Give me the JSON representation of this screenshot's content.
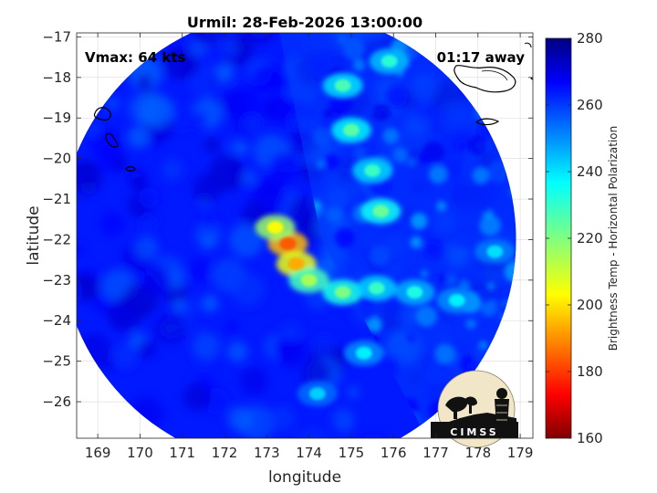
{
  "chart_data": {
    "type": "heatmap",
    "title": "Urmil: 28-Feb-2026 13:00:00",
    "xlabel": "longitude",
    "ylabel": "latitude",
    "xlim": [
      168.5,
      179.3
    ],
    "ylim": [
      -26.9,
      -16.9
    ],
    "x_ticks": [
      169,
      170,
      171,
      172,
      173,
      174,
      175,
      176,
      177,
      178,
      179
    ],
    "y_ticks": [
      -17,
      -18,
      -19,
      -20,
      -21,
      -22,
      -23,
      -24,
      -25,
      -26
    ],
    "grid": true,
    "annotations": {
      "left": "Vmax: 64 kts",
      "right": "01:17 away"
    },
    "swath": {
      "center_lon": 173.5,
      "center_lat": -22.0,
      "radius_deg_lon": 5.4
    },
    "storm_center": {
      "lon": 173.5,
      "lat": -22.1
    },
    "colorbar": {
      "label": "Brightness Temp - Horizontal Polarization",
      "min": 160,
      "max": 280,
      "ticks": [
        160,
        180,
        200,
        220,
        240,
        260,
        280
      ],
      "colormap": "jet"
    },
    "features": [
      {
        "name": "eyewall",
        "lon": 173.5,
        "lat": -22.1,
        "tb": 185
      },
      {
        "name": "eyewall",
        "lon": 173.7,
        "lat": -22.6,
        "tb": 195
      },
      {
        "name": "eyewall",
        "lon": 173.2,
        "lat": -21.7,
        "tb": 205
      },
      {
        "name": "inner-band",
        "lon": 174.0,
        "lat": -23.0,
        "tb": 215
      },
      {
        "name": "inner-band",
        "lon": 174.8,
        "lat": -23.3,
        "tb": 220
      },
      {
        "name": "outer-band",
        "lon": 175.6,
        "lat": -23.2,
        "tb": 228
      },
      {
        "name": "outer-band",
        "lon": 176.5,
        "lat": -23.3,
        "tb": 232
      },
      {
        "name": "outer-band",
        "lon": 177.5,
        "lat": -23.5,
        "tb": 236
      },
      {
        "name": "outer-band",
        "lon": 178.4,
        "lat": -22.3,
        "tb": 238
      },
      {
        "name": "north-band",
        "lon": 175.7,
        "lat": -21.3,
        "tb": 222
      },
      {
        "name": "north-band",
        "lon": 175.5,
        "lat": -20.3,
        "tb": 228
      },
      {
        "name": "north-band",
        "lon": 175.0,
        "lat": -19.3,
        "tb": 224
      },
      {
        "name": "north-band",
        "lon": 174.8,
        "lat": -18.2,
        "tb": 226
      },
      {
        "name": "north-band",
        "lon": 175.9,
        "lat": -17.6,
        "tb": 230
      },
      {
        "name": "south-band",
        "lon": 175.3,
        "lat": -24.8,
        "tb": 236
      },
      {
        "name": "south-band",
        "lon": 174.2,
        "lat": -25.8,
        "tb": 240
      }
    ],
    "colors": {
      "background": "#ffffff",
      "grid": "#d9d9d9",
      "axis": "#262626"
    }
  },
  "logo": {
    "text": "CIMSS"
  }
}
